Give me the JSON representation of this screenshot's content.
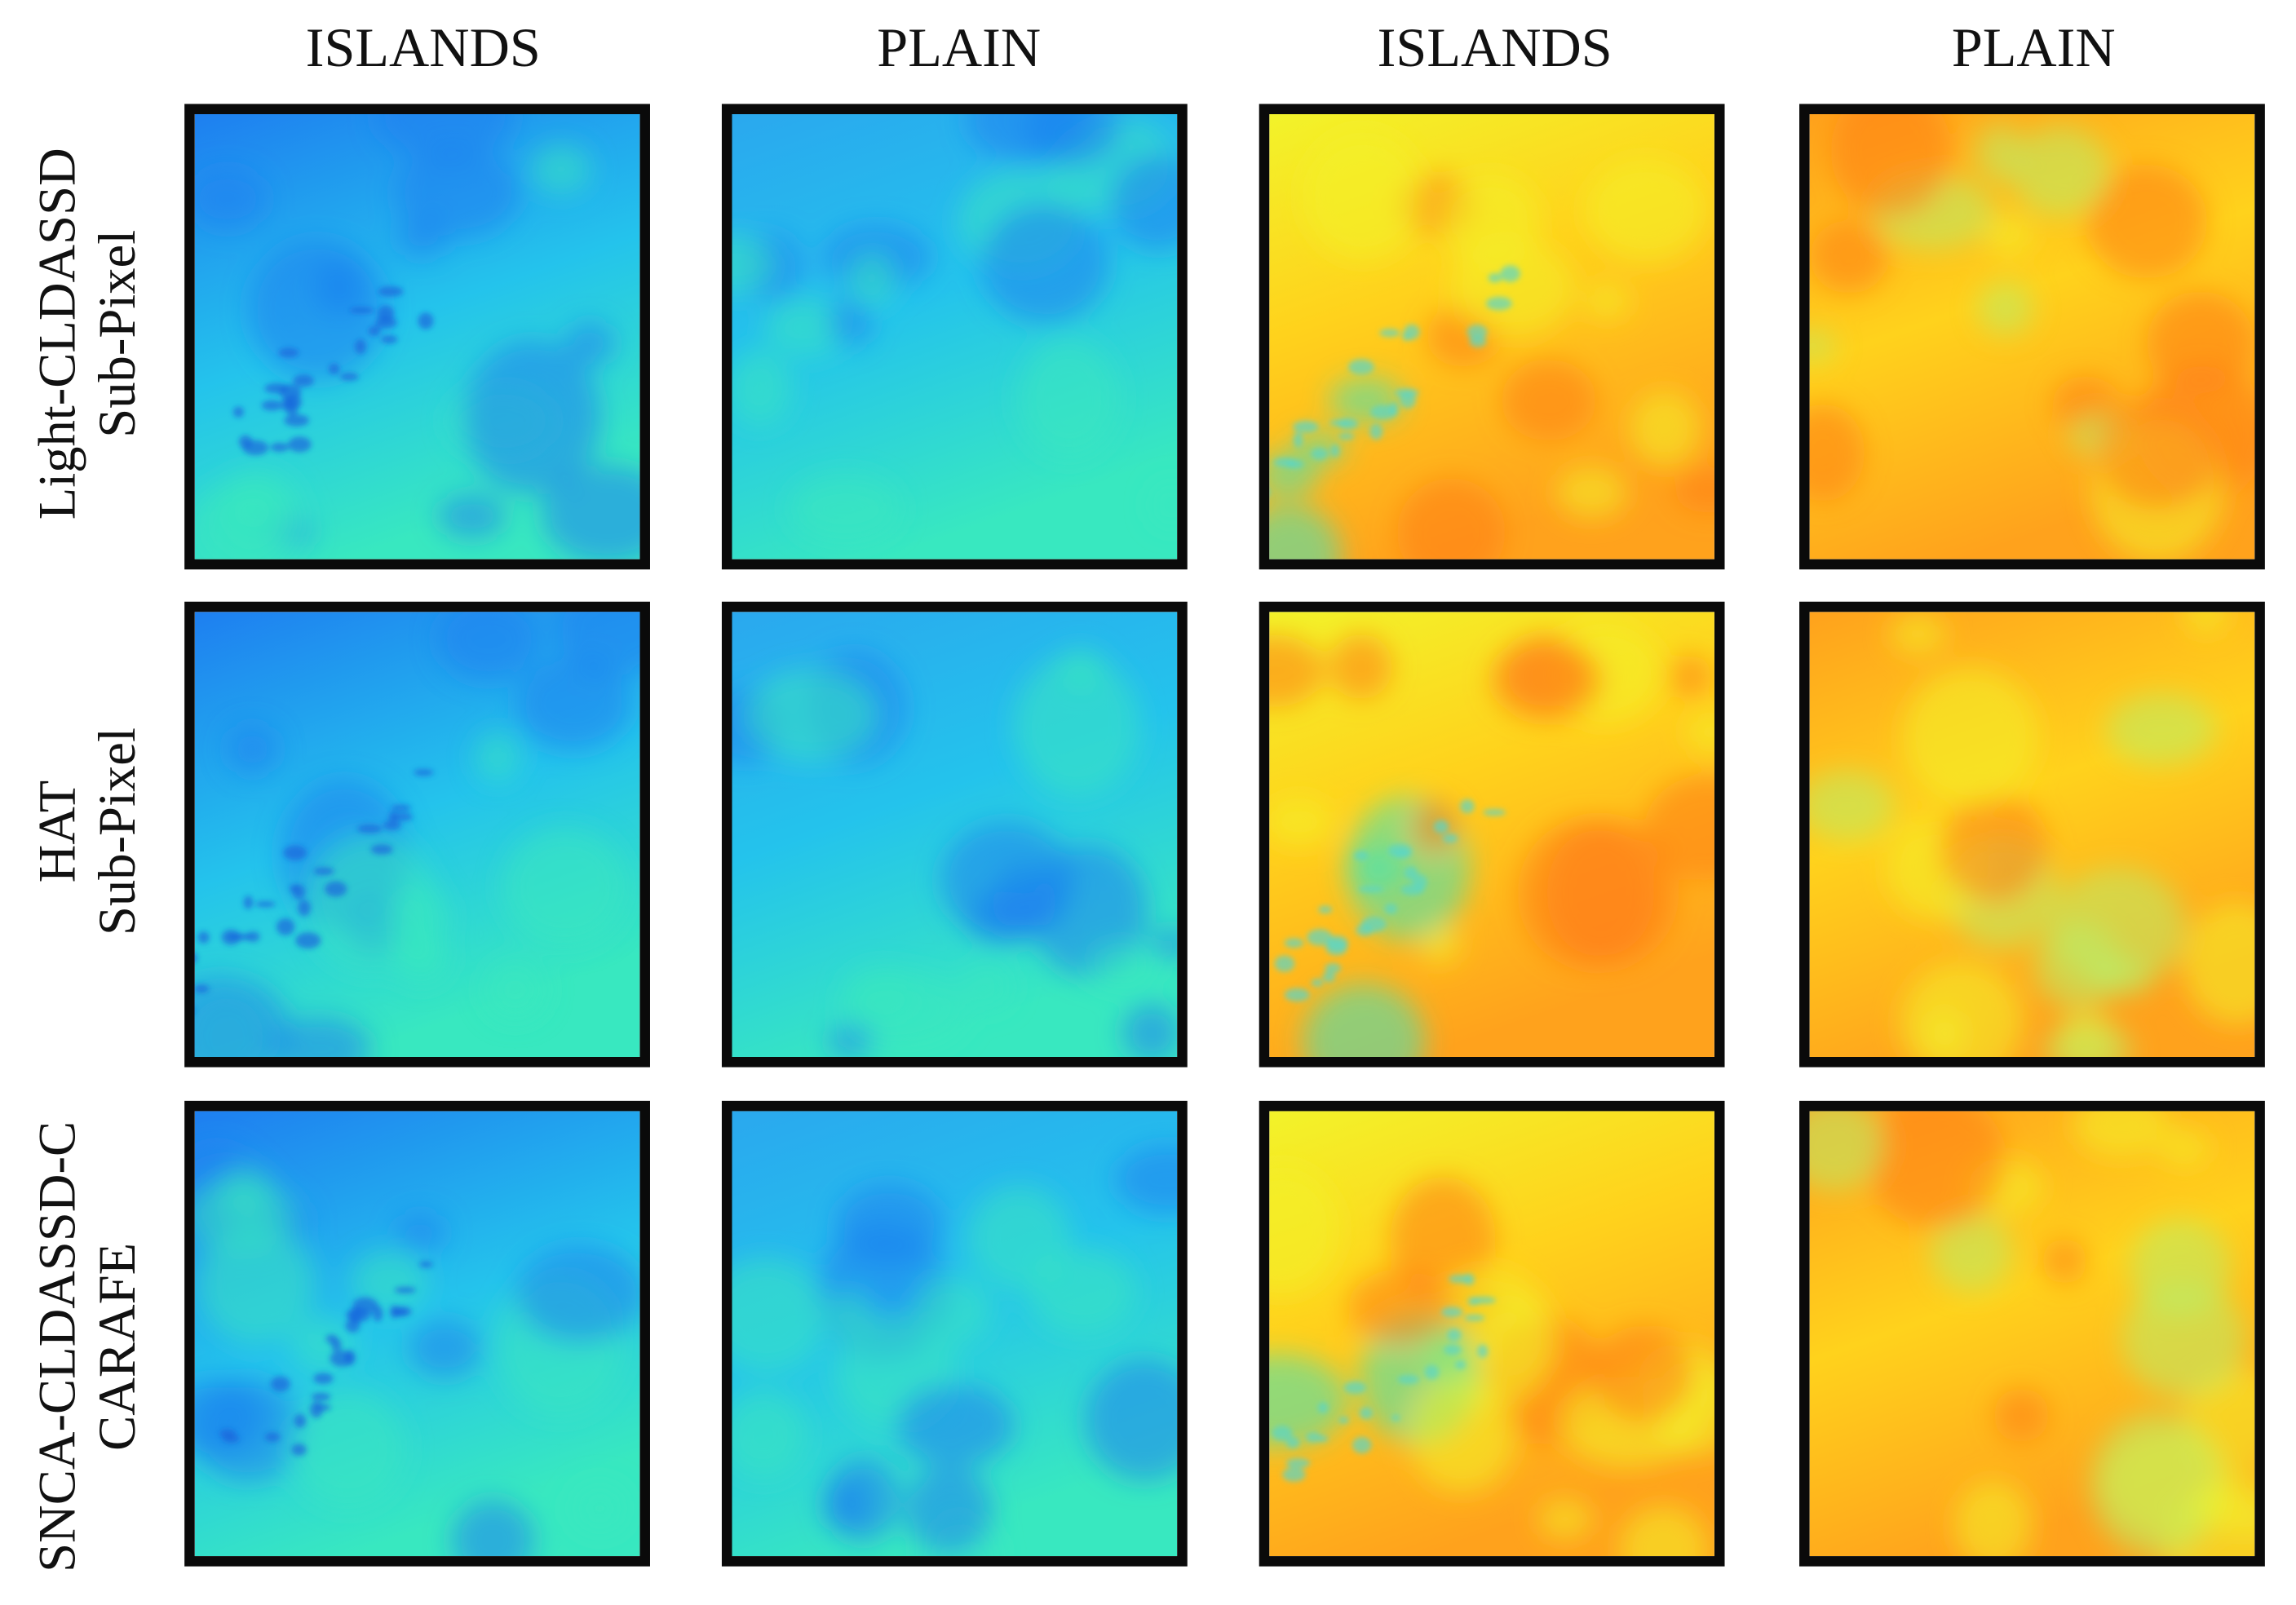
{
  "columns": [
    {
      "label": "ISLANDS",
      "type": "islands",
      "palette": "cool"
    },
    {
      "label": "PLAIN",
      "type": "plain",
      "palette": "cool"
    },
    {
      "label": "ISLANDS",
      "type": "islands",
      "palette": "warm"
    },
    {
      "label": "PLAIN",
      "type": "plain",
      "palette": "warm"
    }
  ],
  "rows": [
    {
      "line1": "Light-CLDASSD",
      "line2": "Sub-Pixel"
    },
    {
      "line1": "HAT",
      "line2": "Sub-Pixel"
    },
    {
      "line1": "SNCA-CLDASSD-C",
      "line2": "CARAFE"
    }
  ],
  "colors": {
    "frame": "#0a0a0a",
    "cool_top": "#1e7ff0",
    "cool_mid": "#24c3ec",
    "cool_bottom": "#38e8c0",
    "warm_light": "#f2f32a",
    "warm_mid": "#ffd21c",
    "warm_dark": "#ffa21c",
    "warm_deep": "#ff7e18"
  }
}
